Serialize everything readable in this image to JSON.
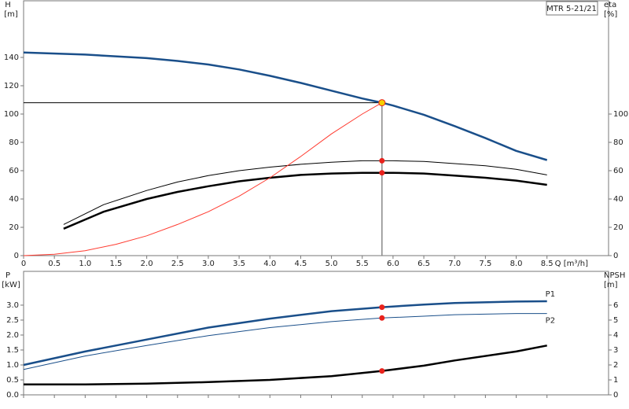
{
  "chart_data": [
    {
      "type": "line",
      "title": "MTR 5-21/21",
      "y_label": "H",
      "y_unit": "[m]",
      "y2_label": "eta",
      "y2_unit": "[%]",
      "x_label": "Q [m³/h]",
      "xlim": [
        0,
        9.5
      ],
      "ylim": [
        0,
        180
      ],
      "y2lim": [
        0,
        180
      ],
      "xticks": [
        0,
        0.5,
        {
          "value": 1,
          "label": "1.0"
        },
        1.5,
        {
          "value": 2,
          "label": "2.0"
        },
        2.5,
        {
          "value": 3,
          "label": "3.0"
        },
        3.5,
        {
          "value": 4,
          "label": "4.0"
        },
        4.5,
        {
          "value": 5,
          "label": "5.0"
        },
        5.5,
        {
          "value": 6,
          "label": "6.0"
        },
        6.5,
        {
          "value": 7,
          "label": "7.0"
        },
        7.5,
        {
          "value": 8,
          "label": "8.0"
        },
        8.5
      ],
      "yticks": [
        0,
        20,
        40,
        60,
        80,
        100,
        120,
        140
      ],
      "y2ticks": [
        0,
        20,
        40,
        60,
        80,
        100
      ],
      "duty_point": {
        "q": 5.82,
        "h": 108,
        "color": "#f5d000",
        "line_color": "#000000"
      },
      "duty_marker_color": "#e8221c",
      "series": [
        {
          "color": "#1a4f8a",
          "width": 2.5,
          "axis": "y",
          "x": [
            0,
            1,
            2,
            2.5,
            3,
            3.5,
            4,
            4.5,
            5,
            5.5,
            5.82,
            6,
            6.5,
            7,
            7.5,
            8,
            8.5
          ],
          "values": [
            143.5,
            142,
            139.5,
            137.5,
            135,
            131.5,
            127,
            122,
            116.5,
            111,
            108,
            106,
            99.5,
            91.5,
            83,
            74,
            67.5
          ]
        },
        {
          "color": "#000000",
          "width": 1,
          "axis": "y2",
          "x": [
            0.65,
            1.3,
            2,
            2.5,
            3,
            3.5,
            4,
            4.5,
            5,
            5.5,
            5.82,
            6,
            6.5,
            7,
            7.5,
            8,
            8.5
          ],
          "values": [
            22,
            36,
            46,
            52,
            56.5,
            60,
            62.5,
            64.5,
            66,
            67,
            67,
            67,
            66.5,
            65,
            63.5,
            61,
            57
          ]
        },
        {
          "color": "#000000",
          "width": 2.5,
          "axis": "y2",
          "x": [
            0.65,
            1.3,
            2,
            2.5,
            3,
            3.5,
            4,
            4.5,
            5,
            5.5,
            5.82,
            6,
            6.5,
            7,
            7.5,
            8,
            8.5
          ],
          "values": [
            19,
            31,
            40,
            45,
            49,
            52.5,
            55,
            57,
            58,
            58.5,
            58.5,
            58.5,
            58,
            56.5,
            55,
            53,
            50
          ]
        },
        {
          "color": "#ff3b30",
          "width": 1,
          "axis": "y",
          "x": [
            0,
            0.5,
            1,
            1.5,
            2,
            2.5,
            3,
            3.5,
            4,
            4.5,
            5,
            5.5,
            5.82
          ],
          "values": [
            0,
            1,
            3.5,
            8,
            14,
            22,
            31,
            42,
            55,
            70,
            86,
            100,
            108
          ]
        }
      ]
    },
    {
      "type": "line",
      "y_label": "P",
      "y_unit": "[kW]",
      "y2_label": "NPSH",
      "y2_unit": "[m]",
      "xlim": [
        0,
        9.5
      ],
      "ylim": [
        0,
        4.13
      ],
      "y2lim": [
        0,
        8.26
      ],
      "xticks": [
        0,
        0.5,
        1,
        1.5,
        2,
        2.5,
        3,
        3.5,
        4,
        4.5,
        5,
        5.5,
        6,
        6.5,
        7,
        7.5,
        8,
        8.5
      ],
      "yticks": [
        {
          "value": 0,
          "label": "0.0"
        },
        0.5,
        {
          "value": 1,
          "label": "1.0"
        },
        1.5,
        {
          "value": 2,
          "label": "2.0"
        },
        2.5,
        {
          "value": 3,
          "label": "3.0"
        }
      ],
      "y2ticks": [
        0,
        1,
        2,
        3,
        4,
        5,
        6
      ],
      "duty_q": 5.82,
      "duty_marker_color": "#e8221c",
      "series": [
        {
          "name": "P1",
          "color": "#1a4f8a",
          "width": 2.5,
          "axis": "y",
          "x": [
            0,
            1,
            2,
            3,
            4,
            5,
            5.82,
            6.5,
            7,
            8,
            8.5
          ],
          "values": [
            1.0,
            1.45,
            1.85,
            2.25,
            2.55,
            2.8,
            2.93,
            3.02,
            3.07,
            3.12,
            3.13
          ]
        },
        {
          "name": "P2",
          "color": "#1a4f8a",
          "width": 1,
          "axis": "y",
          "x": [
            0,
            1,
            2,
            3,
            4,
            5,
            5.82,
            6.5,
            7,
            8,
            8.5
          ],
          "values": [
            0.85,
            1.3,
            1.65,
            1.98,
            2.25,
            2.45,
            2.57,
            2.63,
            2.68,
            2.72,
            2.72
          ]
        },
        {
          "color": "#000000",
          "width": 2.5,
          "axis": "y2",
          "x": [
            0,
            1,
            2,
            3,
            4,
            5,
            5.82,
            6.5,
            7,
            8,
            8.5
          ],
          "values": [
            0.7,
            0.7,
            0.75,
            0.85,
            1.0,
            1.25,
            1.6,
            1.95,
            2.3,
            2.9,
            3.3
          ]
        }
      ]
    }
  ]
}
